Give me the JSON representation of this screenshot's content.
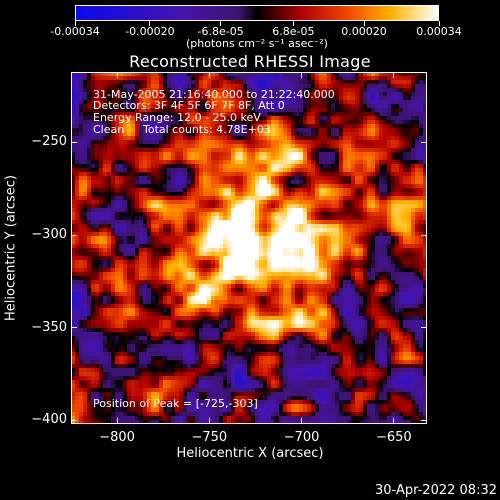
{
  "colorbar": {
    "tick_labels": [
      "-0.00034",
      "-0.00020",
      "-6.8e-05",
      "6.8e-05",
      "0.00020",
      "0.00034"
    ],
    "tick_values": [
      -0.00034,
      -0.0002,
      -6.8e-05,
      6.8e-05,
      0.0002,
      0.00034
    ],
    "units_label": "(photons cm⁻² s⁻¹ asec⁻²)",
    "range": [
      -0.00034,
      0.00034
    ]
  },
  "chart_data": {
    "type": "heatmap",
    "title": "Reconstructed RHESSI Image",
    "xlabel": "Heliocentric X (arcsec)",
    "ylabel": "Heliocentric Y (arcsec)",
    "xlim": [
      -825,
      -632
    ],
    "ylim": [
      -402,
      -212
    ],
    "x_ticks": [
      -800,
      -750,
      -700,
      -650
    ],
    "y_ticks": [
      -400,
      -350,
      -300,
      -250
    ],
    "x_tick_labels": [
      "−800",
      "−750",
      "−700",
      "−650"
    ],
    "y_tick_labels": [
      "−400",
      "−350",
      "−300",
      "−250"
    ],
    "peak_position": [
      -725,
      -303
    ],
    "annotations": {
      "time_range": "31-May-2005 21:16:40.000 to 21:22:40.000",
      "detectors": "Detectors: 3F 4F 5F 6F 7F 8F, Att 0",
      "energy_range": "Energy Range: 12.0 - 25.0 keV",
      "clean_label": "Clean",
      "total_counts": "Total counts: 4.78E+03",
      "peak_label": "Position of Peak = [-725,-303]"
    }
  },
  "footer": {
    "timestamp": "30-Apr-2022 08:32"
  }
}
